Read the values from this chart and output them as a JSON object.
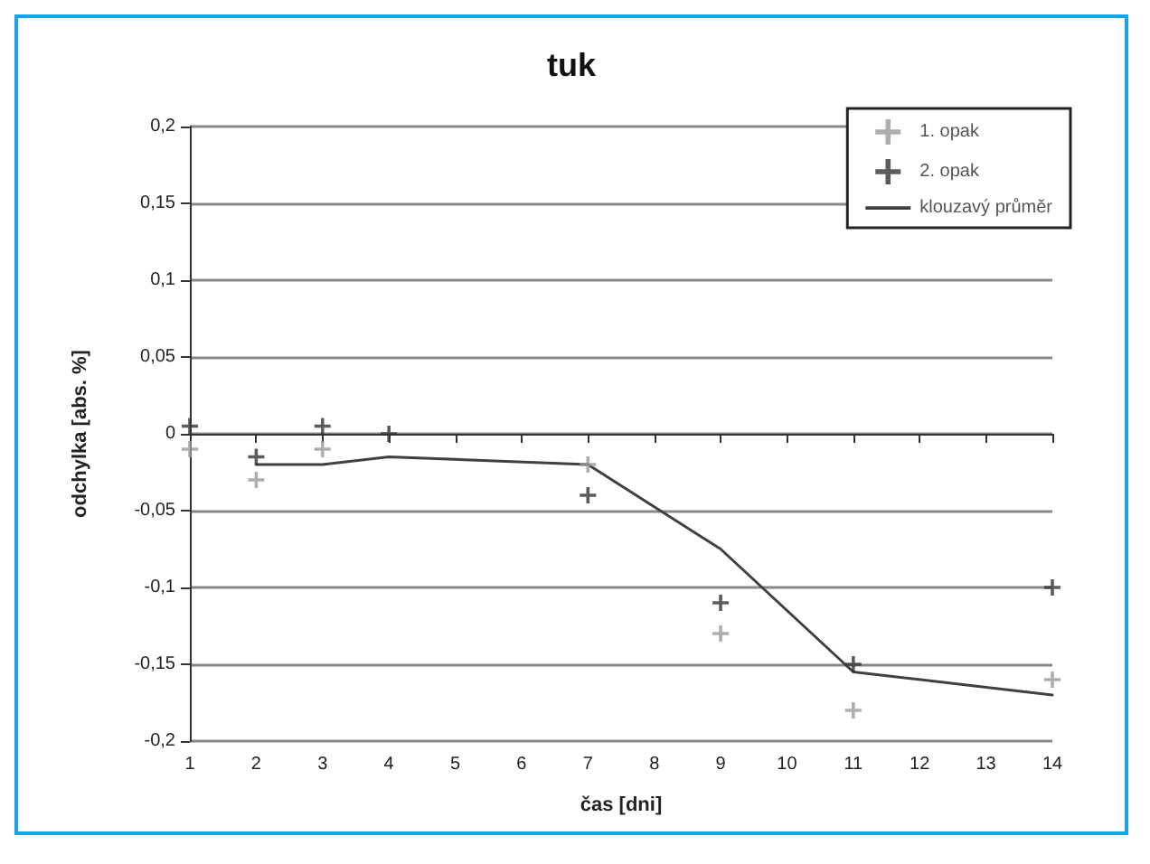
{
  "chart_data": {
    "type": "scatter",
    "title": "tuk",
    "xlabel": "čas [dni]",
    "ylabel": "odchylka [abs. %]",
    "xlim": [
      1,
      14
    ],
    "xticks": [
      1,
      2,
      3,
      4,
      5,
      6,
      7,
      8,
      9,
      10,
      11,
      12,
      13,
      14
    ],
    "ylim": [
      -0.2,
      0.2
    ],
    "yticks": [
      {
        "value": -0.2,
        "label": "-0,2"
      },
      {
        "value": -0.15,
        "label": "-0,15"
      },
      {
        "value": -0.1,
        "label": "-0,1"
      },
      {
        "value": -0.05,
        "label": "-0,05"
      },
      {
        "value": 0,
        "label": "0"
      },
      {
        "value": 0.05,
        "label": "0,05"
      },
      {
        "value": 0.1,
        "label": "0,1"
      },
      {
        "value": 0.15,
        "label": "0,15"
      },
      {
        "value": 0.2,
        "label": "0,2"
      }
    ],
    "grid": "y",
    "legend": "top right",
    "marker": "cross",
    "series": [
      {
        "name": "1. opak",
        "color": "#9a9a9a",
        "x": [
          1,
          2,
          3,
          7,
          9,
          11,
          14
        ],
        "values": [
          -0.01,
          -0.03,
          -0.01,
          -0.02,
          -0.13,
          -0.18,
          -0.16
        ]
      },
      {
        "name": "2. opak",
        "color": "#333333",
        "x": [
          1,
          2,
          3,
          4,
          7,
          9,
          11,
          14
        ],
        "values": [
          0.005,
          -0.015,
          0.005,
          0,
          -0.04,
          -0.11,
          -0.15,
          -0.1
        ]
      },
      {
        "name": "klouzavý průměr",
        "type": "line",
        "color": "#404040",
        "marker": "none",
        "line_style": "solid",
        "x": [
          2,
          3,
          4,
          7,
          9,
          11,
          14
        ],
        "values": [
          -0.02,
          -0.02,
          -0.015,
          -0.02,
          -0.075,
          -0.155,
          -0.17
        ]
      }
    ]
  }
}
